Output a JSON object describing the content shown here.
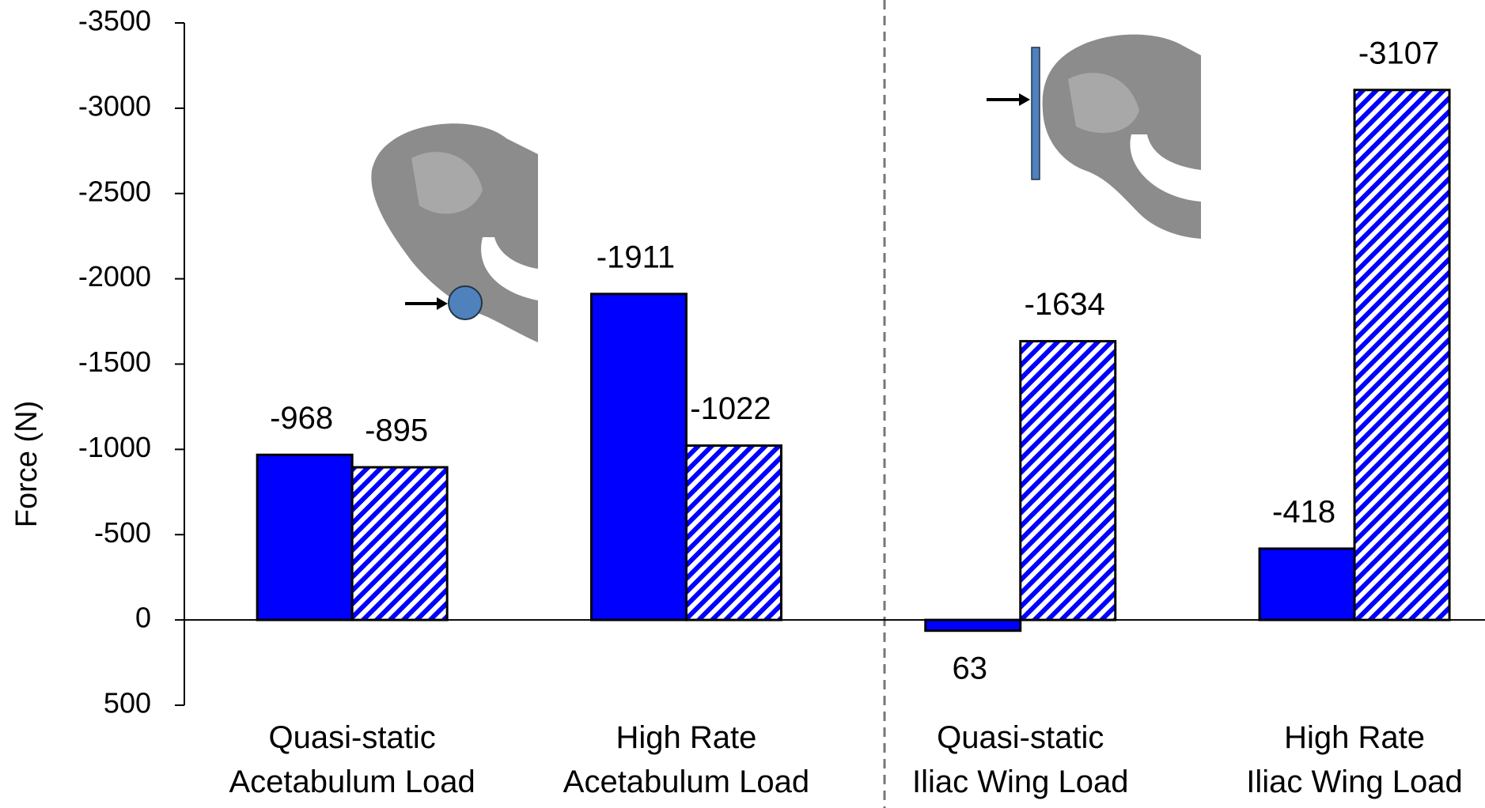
{
  "chart_data": {
    "type": "bar",
    "y_label": "Force (N)",
    "categories": [
      "Quasi-static\nAcetabulum Load",
      "High Rate\nAcetabulum Load",
      "Quasi-static\nIliac Wing Load",
      "High Rate\nIliac Wing Load"
    ],
    "series": [
      {
        "color": "#0000ff",
        "pattern": "solid",
        "values": [
          -968,
          -1911,
          63,
          -418
        ]
      },
      {
        "color": "#0000ff",
        "pattern": "hatch",
        "values": [
          -895,
          -1022,
          -1634,
          -3107
        ]
      }
    ],
    "ylim": [
      500,
      -3500
    ],
    "yticks": [
      -3500,
      -3000,
      -2500,
      -2000,
      -1500,
      -1000,
      -500,
      0,
      500
    ],
    "grid": false
  }
}
